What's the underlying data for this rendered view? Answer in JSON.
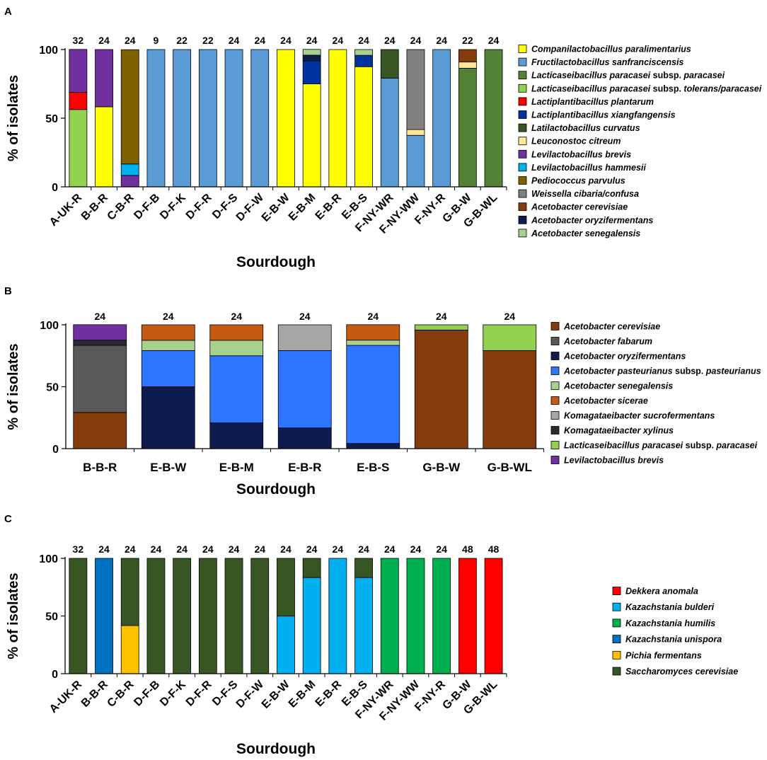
{
  "chart_data": [
    {
      "panel": "A",
      "type": "bar",
      "stacked": true,
      "title": "",
      "xlabel": "Sourdough",
      "ylabel": "% of isolates",
      "ylim": [
        0,
        100
      ],
      "yticks": [
        "0",
        "50",
        "100"
      ],
      "categories": [
        "A-UK-R",
        "B-B-R",
        "C-B-R",
        "D-F-B",
        "D-F-K",
        "D-F-R",
        "D-F-S",
        "D-F-W",
        "E-B-W",
        "E-B-M",
        "E-B-R",
        "E-B-S",
        "F-NY-WR",
        "F-NY-WW",
        "F-NY-R",
        "G-B-W",
        "G-B-WL"
      ],
      "counts": [
        "32",
        "24",
        "24",
        "9",
        "22",
        "22",
        "24",
        "24",
        "24",
        "24",
        "24",
        "24",
        "24",
        "24",
        "24",
        "22",
        "24"
      ],
      "series": [
        {
          "name": "Companilactobacillus paralimentarius",
          "color": "#ffff00",
          "values": [
            0,
            58.3,
            0,
            0,
            0,
            0,
            0,
            0,
            100,
            75,
            100,
            87.5,
            0,
            0,
            0,
            0,
            0
          ]
        },
        {
          "name": "Fructilactobacillus sanfranciscensis",
          "color": "#5b9bd5",
          "values": [
            0,
            0,
            0,
            100,
            100,
            100,
            100,
            100,
            0,
            0,
            0,
            0,
            79.2,
            37.5,
            100,
            0,
            0
          ]
        },
        {
          "name": "Lacticaseibacillus paracasei subsp. paracasei",
          "color": "#538135",
          "values": [
            0,
            0,
            0,
            0,
            0,
            0,
            0,
            0,
            0,
            0,
            0,
            0,
            0,
            0,
            0,
            86.4,
            100
          ]
        },
        {
          "name": "Lacticaseibacillus paracasei subsp. tolerans/paracasei",
          "color": "#92d050",
          "values": [
            56.3,
            0,
            0,
            0,
            0,
            0,
            0,
            0,
            0,
            0,
            0,
            0,
            0,
            0,
            0,
            0,
            0
          ]
        },
        {
          "name": "Lactiplantibacillus plantarum",
          "color": "#ff0000",
          "values": [
            12.5,
            0,
            0,
            0,
            0,
            0,
            0,
            0,
            0,
            0,
            0,
            0,
            0,
            0,
            0,
            0,
            0
          ]
        },
        {
          "name": "Lactiplantibacillus xiangfangensis",
          "color": "#0033a0",
          "values": [
            0,
            0,
            0,
            0,
            0,
            0,
            0,
            0,
            0,
            16.7,
            0,
            8.3,
            0,
            0,
            0,
            0,
            0
          ]
        },
        {
          "name": "Latilactobacillus curvatus",
          "color": "#375623",
          "values": [
            0,
            0,
            0,
            0,
            0,
            0,
            0,
            0,
            0,
            0,
            0,
            0,
            20.8,
            0,
            0,
            0,
            0
          ]
        },
        {
          "name": "Leuconostoc citreum",
          "color": "#ffe699",
          "values": [
            0,
            0,
            0,
            0,
            0,
            0,
            0,
            0,
            0,
            0,
            0,
            0,
            0,
            4.2,
            0,
            4.5,
            0
          ]
        },
        {
          "name": "Levilactobacillus brevis",
          "color": "#7030a0",
          "values": [
            31.3,
            41.7,
            8.3,
            0,
            0,
            0,
            0,
            0,
            0,
            0,
            0,
            0,
            0,
            0,
            0,
            0,
            0
          ]
        },
        {
          "name": "Levilactobacillus hammesii",
          "color": "#00b0f0",
          "values": [
            0,
            0,
            8.3,
            0,
            0,
            0,
            0,
            0,
            0,
            0,
            0,
            0,
            0,
            0,
            0,
            0,
            0
          ]
        },
        {
          "name": "Pediococcus parvulus",
          "color": "#7f6000",
          "values": [
            0,
            0,
            83.3,
            0,
            0,
            0,
            0,
            0,
            0,
            0,
            0,
            0,
            0,
            0,
            0,
            0,
            0
          ]
        },
        {
          "name": "Weissella cibaria/confusa",
          "color": "#808080",
          "values": [
            0,
            0,
            0,
            0,
            0,
            0,
            0,
            0,
            0,
            0,
            0,
            0,
            0,
            58.3,
            0,
            0,
            0
          ]
        },
        {
          "name": "Acetobacter cerevisiae",
          "color": "#843c0c",
          "values": [
            0,
            0,
            0,
            0,
            0,
            0,
            0,
            0,
            0,
            0,
            0,
            0,
            0,
            0,
            0,
            9.1,
            0
          ]
        },
        {
          "name": "Acetobacter oryzifermentans",
          "color": "#0d1b4f",
          "values": [
            0,
            0,
            0,
            0,
            0,
            0,
            0,
            0,
            0,
            4.2,
            0,
            0,
            0,
            0,
            0,
            0,
            0
          ]
        },
        {
          "name": "Acetobacter senegalensis",
          "color": "#a9d18e",
          "values": [
            0,
            0,
            0,
            0,
            0,
            0,
            0,
            0,
            0,
            4.2,
            0,
            4.2,
            0,
            0,
            0,
            0,
            0
          ]
        }
      ]
    },
    {
      "panel": "B",
      "type": "bar",
      "stacked": true,
      "title": "",
      "xlabel": "Sourdough",
      "ylabel": "% of isolates",
      "ylim": [
        0,
        100
      ],
      "yticks": [
        "0",
        "50",
        "100"
      ],
      "categories": [
        "B-B-R",
        "E-B-W",
        "E-B-M",
        "E-B-R",
        "E-B-S",
        "G-B-W",
        "G-B-WL"
      ],
      "counts": [
        "24",
        "24",
        "24",
        "24",
        "24",
        "24",
        "24"
      ],
      "series": [
        {
          "name": "Acetobacter cerevisiae",
          "color": "#843c0c",
          "values": [
            29.2,
            0,
            0,
            0,
            0,
            95.8,
            79.2
          ]
        },
        {
          "name": "Acetobacter fabarum",
          "color": "#595959",
          "values": [
            54.2,
            0,
            0,
            0,
            0,
            0,
            0
          ]
        },
        {
          "name": "Acetobacter oryzifermentans",
          "color": "#0d1b4f",
          "values": [
            0,
            50,
            20.8,
            16.7,
            4.2,
            0,
            0
          ]
        },
        {
          "name": "Acetobacter pasteurianus subsp. pasteurianus",
          "color": "#2e75ff",
          "values": [
            0,
            29.2,
            54.2,
            62.5,
            79.2,
            0,
            0
          ]
        },
        {
          "name": "Acetobacter senegalensis",
          "color": "#a9d18e",
          "values": [
            0,
            8.3,
            12.5,
            0,
            4.2,
            0,
            0
          ]
        },
        {
          "name": "Acetobacter sicerae",
          "color": "#c55a11",
          "values": [
            0,
            12.5,
            12.5,
            0,
            12.5,
            0,
            0
          ]
        },
        {
          "name": "Komagataeibacter sucrofermentans",
          "color": "#a6a6a6",
          "values": [
            0,
            0,
            0,
            20.8,
            0,
            0,
            0
          ]
        },
        {
          "name": "Komagataeibacter xylinus",
          "color": "#262b33",
          "values": [
            4.2,
            0,
            0,
            0,
            0,
            0,
            0
          ]
        },
        {
          "name": "Lacticaseibacillus paracasei subsp. paracasei",
          "color": "#92d050",
          "values": [
            0,
            0,
            0,
            0,
            0,
            4.2,
            20.8
          ]
        },
        {
          "name": "Levilactobacillus brevis",
          "color": "#7030a0",
          "values": [
            12.5,
            0,
            0,
            0,
            0,
            0,
            0
          ]
        }
      ]
    },
    {
      "panel": "C",
      "type": "bar",
      "stacked": true,
      "title": "",
      "xlabel": "Sourdough",
      "ylabel": "% of isolates",
      "ylim": [
        0,
        100
      ],
      "yticks": [
        "0",
        "50",
        "100"
      ],
      "categories": [
        "A-UK-R",
        "B-B-R",
        "C-B-R",
        "D-F-B",
        "D-F-K",
        "D-F-R",
        "D-F-S",
        "D-F-W",
        "E-B-W",
        "E-B-M",
        "E-B-R",
        "E-B-S",
        "F-NY-WR",
        "F-NY-WW",
        "F-NY-R",
        "G-B-W",
        "G-B-WL"
      ],
      "counts": [
        "32",
        "24",
        "24",
        "24",
        "24",
        "24",
        "24",
        "24",
        "24",
        "24",
        "24",
        "24",
        "24",
        "24",
        "24",
        "48",
        "48"
      ],
      "series": [
        {
          "name": "Dekkera anomala",
          "color": "#ff0000",
          "values": [
            0,
            0,
            0,
            0,
            0,
            0,
            0,
            0,
            0,
            0,
            0,
            0,
            0,
            0,
            0,
            100,
            100
          ]
        },
        {
          "name": "Kazachstania bulderi",
          "color": "#00b0f0",
          "values": [
            0,
            0,
            0,
            0,
            0,
            0,
            0,
            0,
            50,
            83.3,
            100,
            83.3,
            0,
            0,
            0,
            0,
            0
          ]
        },
        {
          "name": "Kazachstania humilis",
          "color": "#00b050",
          "values": [
            0,
            0,
            0,
            0,
            0,
            0,
            0,
            0,
            0,
            0,
            0,
            0,
            100,
            100,
            100,
            0,
            0
          ]
        },
        {
          "name": "Kazachstania unispora",
          "color": "#0070c0",
          "values": [
            0,
            100,
            0,
            0,
            0,
            0,
            0,
            0,
            0,
            0,
            0,
            0,
            0,
            0,
            0,
            0,
            0
          ]
        },
        {
          "name": "Pichia fermentans",
          "color": "#ffc000",
          "values": [
            0,
            0,
            41.7,
            0,
            0,
            0,
            0,
            0,
            0,
            0,
            0,
            0,
            0,
            0,
            0,
            0,
            0
          ]
        },
        {
          "name": "Saccharomyces cerevisiae",
          "color": "#375623",
          "values": [
            100,
            0,
            58.3,
            100,
            100,
            100,
            100,
            100,
            50,
            16.7,
            0,
            16.7,
            0,
            0,
            0,
            0,
            0
          ]
        }
      ]
    }
  ]
}
